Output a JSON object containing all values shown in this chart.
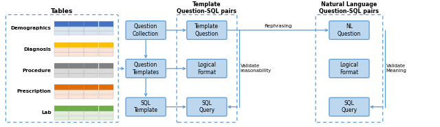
{
  "bg_color": "#ffffff",
  "arrow_color": "#5b9bd5",
  "box_face_color": "#bdd7ee",
  "box_edge_color": "#5b9bd5",
  "dashed_edge_color": "#5b9bd5",
  "table_colors": {
    "Demographics": [
      "#4472c4",
      "#dce6f1"
    ],
    "Diagnosis": [
      "#ffc000",
      "#fce4d6"
    ],
    "Procedure": [
      "#808080",
      "#d9d9d9"
    ],
    "Prescription": [
      "#e36c09",
      "#fce4d6"
    ],
    "Lab": [
      "#70ad47",
      "#e2efda"
    ]
  },
  "table_labels": [
    "Demographics",
    "Diagnosis",
    "Procedure",
    "Prescription",
    "Lab"
  ],
  "section_labels": {
    "tables": "Tables",
    "template_pairs": "Template\nQuestion-SQL pairs",
    "nl_pairs": "Natural Language\nQuestion-SQL pairs"
  },
  "box_labels": {
    "question_collection": "Question\nCollection",
    "question_templates": "Question\nTemplates",
    "sql_template": "SQL\nTemplate",
    "template_question": "Template\nQuestion",
    "logical_format_1": "Logical\nFormat",
    "sql_query_1": "SQL\nQuery",
    "nl_question": "NL\nQuestion",
    "logical_format_2": "Logical\nFormat",
    "sql_query_2": "SQL\nQuery"
  },
  "side_labels": {
    "rephrasing": "Rephrasing",
    "validate_reasonability": "Validate\nreasonability",
    "validate_meaning": "Validate\nMeaning"
  }
}
